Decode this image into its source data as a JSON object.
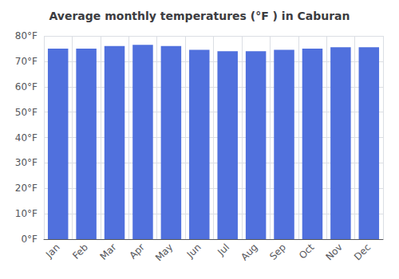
{
  "chart_data": {
    "type": "bar",
    "title": "Average monthly temperatures (°F ) in Caburan",
    "categories": [
      "Jan",
      "Feb",
      "Mar",
      "Apr",
      "May",
      "Jun",
      "Jul",
      "Aug",
      "Sep",
      "Oct",
      "Nov",
      "Dec"
    ],
    "values": [
      75.0,
      75.0,
      76.0,
      76.5,
      76.0,
      74.5,
      74.0,
      74.0,
      74.5,
      75.0,
      75.5,
      75.5
    ],
    "ylim": [
      0,
      80
    ],
    "yticks": [
      {
        "value": 0,
        "label": "0°F"
      },
      {
        "value": 10,
        "label": "10°F"
      },
      {
        "value": 20,
        "label": "20°F"
      },
      {
        "value": 30,
        "label": "30°F"
      },
      {
        "value": 40,
        "label": "40°F"
      },
      {
        "value": 50,
        "label": "50°F"
      },
      {
        "value": 60,
        "label": "60°F"
      },
      {
        "value": 70,
        "label": "70°F"
      },
      {
        "value": 80,
        "label": "80°F"
      }
    ],
    "grid": true
  }
}
